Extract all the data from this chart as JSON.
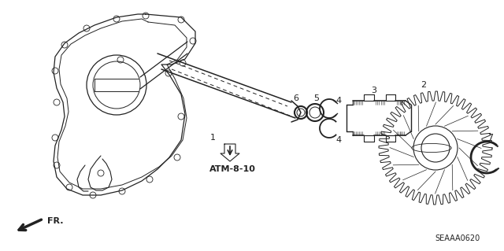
{
  "bg_color": "#ffffff",
  "line_color": "#222222",
  "diagram_id": "SEAAA0620",
  "ref_label": "ATM-8-10",
  "fr_label": "FR."
}
